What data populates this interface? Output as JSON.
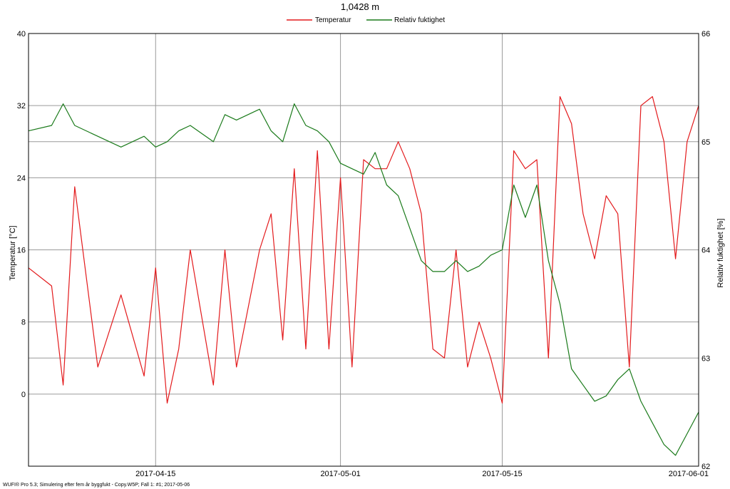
{
  "chart_data": {
    "type": "line",
    "title": "1,0428 m",
    "legend": {
      "placement": "top-center",
      "entries": [
        {
          "label": "Temperatur",
          "color": "#e31a1c"
        },
        {
          "label": "Relativ fuktighet",
          "color": "#1a7a1a"
        }
      ]
    },
    "left_axis": {
      "label": "Temperatur [°C]",
      "ylim": [
        -8,
        40
      ],
      "ticks": [
        "0",
        "8",
        "16",
        "24",
        "32",
        "40"
      ]
    },
    "right_axis": {
      "label": "Relativ fuktighet [%]",
      "ylim": [
        62,
        66
      ],
      "ticks": [
        "62",
        "63",
        "64",
        "65",
        "66"
      ]
    },
    "x_axis": {
      "xlim": [
        "2017-04-04",
        "2017-06-01"
      ],
      "ticks": [
        "2017-04-15",
        "2017-05-01",
        "2017-05-15",
        "2017-06-01"
      ]
    },
    "grid": true,
    "series": [
      {
        "name": "Temperatur",
        "axis": "left",
        "color": "#e31a1c",
        "x": [
          "2017-04-04",
          "2017-04-06",
          "2017-04-07",
          "2017-04-08",
          "2017-04-10",
          "2017-04-12",
          "2017-04-14",
          "2017-04-15",
          "2017-04-16",
          "2017-04-17",
          "2017-04-18",
          "2017-04-20",
          "2017-04-21",
          "2017-04-22",
          "2017-04-24",
          "2017-04-25",
          "2017-04-26",
          "2017-04-27",
          "2017-04-28",
          "2017-04-29",
          "2017-04-30",
          "2017-05-01",
          "2017-05-02",
          "2017-05-03",
          "2017-05-04",
          "2017-05-05",
          "2017-05-06",
          "2017-05-07",
          "2017-05-08",
          "2017-05-09",
          "2017-05-10",
          "2017-05-11",
          "2017-05-12",
          "2017-05-13",
          "2017-05-14",
          "2017-05-15",
          "2017-05-16",
          "2017-05-17",
          "2017-05-18",
          "2017-05-19",
          "2017-05-20",
          "2017-05-21",
          "2017-05-22",
          "2017-05-23",
          "2017-05-24",
          "2017-05-25",
          "2017-05-26",
          "2017-05-27",
          "2017-05-28",
          "2017-05-29",
          "2017-05-30",
          "2017-05-31",
          "2017-06-01"
        ],
        "values": [
          14,
          12,
          1,
          23,
          3,
          11,
          2,
          14,
          -1,
          5,
          16,
          1,
          16,
          3,
          16,
          20,
          6,
          25,
          5,
          27,
          5,
          24,
          3,
          26,
          25,
          25,
          28,
          25,
          20,
          5,
          4,
          16,
          3,
          8,
          4,
          -1,
          27,
          25,
          26,
          4,
          33,
          30,
          20,
          15,
          22,
          20,
          3,
          32,
          33,
          28,
          15,
          28,
          32
        ]
      },
      {
        "name": "Relativ fuktighet",
        "axis": "right",
        "color": "#1a7a1a",
        "x": [
          "2017-04-04",
          "2017-04-06",
          "2017-04-07",
          "2017-04-08",
          "2017-04-10",
          "2017-04-12",
          "2017-04-14",
          "2017-04-15",
          "2017-04-16",
          "2017-04-17",
          "2017-04-18",
          "2017-04-20",
          "2017-04-21",
          "2017-04-22",
          "2017-04-24",
          "2017-04-25",
          "2017-04-26",
          "2017-04-27",
          "2017-04-28",
          "2017-04-29",
          "2017-04-30",
          "2017-05-01",
          "2017-05-02",
          "2017-05-03",
          "2017-05-04",
          "2017-05-05",
          "2017-05-06",
          "2017-05-07",
          "2017-05-08",
          "2017-05-09",
          "2017-05-10",
          "2017-05-11",
          "2017-05-12",
          "2017-05-13",
          "2017-05-14",
          "2017-05-15",
          "2017-05-16",
          "2017-05-17",
          "2017-05-18",
          "2017-05-19",
          "2017-05-20",
          "2017-05-21",
          "2017-05-22",
          "2017-05-23",
          "2017-05-24",
          "2017-05-25",
          "2017-05-26",
          "2017-05-27",
          "2017-05-28",
          "2017-05-29",
          "2017-05-30",
          "2017-05-31",
          "2017-06-01"
        ],
        "values": [
          65.1,
          65.15,
          65.35,
          65.15,
          65.05,
          64.95,
          65.05,
          64.95,
          65.0,
          65.1,
          65.15,
          65.0,
          65.25,
          65.2,
          65.3,
          65.1,
          65.0,
          65.35,
          65.15,
          65.1,
          65.0,
          64.8,
          64.75,
          64.7,
          64.9,
          64.6,
          64.5,
          64.2,
          63.9,
          63.8,
          63.8,
          63.9,
          63.8,
          63.85,
          63.95,
          64.0,
          64.6,
          64.3,
          64.6,
          63.9,
          63.5,
          62.9,
          62.75,
          62.6,
          62.65,
          62.8,
          62.9,
          62.6,
          62.4,
          62.2,
          62.1,
          62.3,
          62.5
        ]
      }
    ]
  },
  "footer": "WUFI® Pro 5.3; Simulering efter fem år  byggfukt - Copy.W5P; Fall 1: #1; 2017-05-06"
}
